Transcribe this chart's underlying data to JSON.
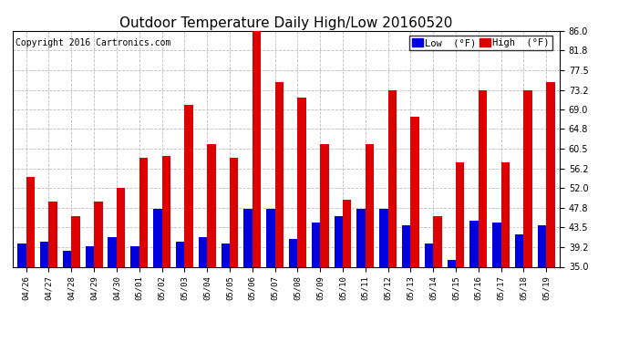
{
  "title": "Outdoor Temperature Daily High/Low 20160520",
  "copyright": "Copyright 2016 Cartronics.com",
  "categories": [
    "04/26",
    "04/27",
    "04/28",
    "04/29",
    "04/30",
    "05/01",
    "05/02",
    "05/03",
    "05/04",
    "05/05",
    "05/06",
    "05/07",
    "05/08",
    "05/09",
    "05/10",
    "05/11",
    "05/12",
    "05/13",
    "05/14",
    "05/15",
    "05/16",
    "05/17",
    "05/18",
    "05/19"
  ],
  "high": [
    54.5,
    49.0,
    46.0,
    49.0,
    52.0,
    58.5,
    59.0,
    70.0,
    61.5,
    58.5,
    86.0,
    75.0,
    71.5,
    61.5,
    49.5,
    61.5,
    73.2,
    67.5,
    46.0,
    57.5,
    73.2,
    57.5,
    73.2,
    75.0
  ],
  "low": [
    40.0,
    40.5,
    38.5,
    39.5,
    41.5,
    39.5,
    47.5,
    40.5,
    41.5,
    40.0,
    47.5,
    47.5,
    41.0,
    44.5,
    46.0,
    47.5,
    47.5,
    44.0,
    40.0,
    36.5,
    45.0,
    44.5,
    42.0,
    44.0
  ],
  "ylim_min": 35.0,
  "ylim_max": 86.0,
  "yticks": [
    35.0,
    39.2,
    43.5,
    47.8,
    52.0,
    56.2,
    60.5,
    64.8,
    69.0,
    73.2,
    77.5,
    81.8,
    86.0
  ],
  "low_color": "#0000dd",
  "high_color": "#dd0000",
  "bg_color": "#ffffff",
  "grid_color": "#bbbbbb",
  "title_fontsize": 11,
  "copyright_fontsize": 7,
  "legend_low_label": "Low  (°F)",
  "legend_high_label": "High  (°F)",
  "bar_width": 0.38,
  "fig_width": 6.9,
  "fig_height": 3.75,
  "dpi": 100
}
